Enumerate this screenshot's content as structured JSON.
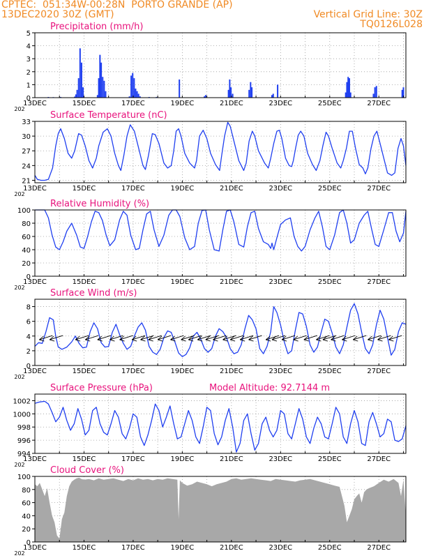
{
  "header": {
    "line1": "CPTEC:  051:34W-00:28N  PORTO GRANDE (AP)",
    "line2": "13DEC2020 30Z (GMT)",
    "grid_note": "Vertical Grid Line: 30Z",
    "code": "TQ0126L028"
  },
  "colors": {
    "header": "#f08a24",
    "title": "#e8127c",
    "series": "#1f3ff0",
    "cloud": "#a8a8a8",
    "grid": "#9a9a9a"
  },
  "x_tick_labels": [
    "13DEC",
    "15DEC",
    "17DEC",
    "19DEC",
    "21DEC",
    "23DEC",
    "25DEC",
    "27DEC"
  ],
  "x_corner_label": "202",
  "chart_data": [
    {
      "id": "precip",
      "type": "bar",
      "title": "Precipitation (mm/h)",
      "ylim": [
        0,
        5
      ],
      "yticks": [
        0,
        1,
        2,
        3,
        4,
        5
      ],
      "xlim_days": [
        13.0,
        28.1
      ],
      "values": [
        [
          13.55,
          0.05
        ],
        [
          13.75,
          0.04
        ],
        [
          14.05,
          0.05
        ],
        [
          14.62,
          0.08
        ],
        [
          14.67,
          0.25
        ],
        [
          14.72,
          0.6
        ],
        [
          14.78,
          1.5
        ],
        [
          14.84,
          3.8
        ],
        [
          14.9,
          2.7
        ],
        [
          14.96,
          0.8
        ],
        [
          15.55,
          0.2
        ],
        [
          15.6,
          1.5
        ],
        [
          15.65,
          3.3
        ],
        [
          15.7,
          2.7
        ],
        [
          15.76,
          1.6
        ],
        [
          15.82,
          1.3
        ],
        [
          15.88,
          0.5
        ],
        [
          16.85,
          0.1
        ],
        [
          16.92,
          1.7
        ],
        [
          16.98,
          1.9
        ],
        [
          17.04,
          1.5
        ],
        [
          17.1,
          0.7
        ],
        [
          17.16,
          0.5
        ],
        [
          17.22,
          0.3
        ],
        [
          17.28,
          0.1
        ],
        [
          17.65,
          0.05
        ],
        [
          17.95,
          0.05
        ],
        [
          18.88,
          1.4
        ],
        [
          19.9,
          0.1
        ],
        [
          19.95,
          0.2
        ],
        [
          20.88,
          0.6
        ],
        [
          20.93,
          1.4
        ],
        [
          20.98,
          0.8
        ],
        [
          21.05,
          0.3
        ],
        [
          21.72,
          0.6
        ],
        [
          21.78,
          1.2
        ],
        [
          21.83,
          0.8
        ],
        [
          22.65,
          0.2
        ],
        [
          22.7,
          0.3
        ],
        [
          22.88,
          1.0
        ],
        [
          25.65,
          0.4
        ],
        [
          25.7,
          1.2
        ],
        [
          25.75,
          1.6
        ],
        [
          25.8,
          1.5
        ],
        [
          25.85,
          0.4
        ],
        [
          26.78,
          0.3
        ],
        [
          26.84,
          0.8
        ],
        [
          26.9,
          0.9
        ],
        [
          27.95,
          0.6
        ],
        [
          28.0,
          0.8
        ]
      ]
    },
    {
      "id": "temp",
      "type": "line",
      "title": "Surface Temperature (nC)",
      "ylim": [
        20.5,
        33
      ],
      "yticks": [
        21,
        24,
        27,
        30,
        33
      ],
      "xlim_days": [
        13.0,
        28.1
      ],
      "x": [
        13.0,
        13.1,
        13.25,
        13.4,
        13.55,
        13.72,
        13.85,
        13.95,
        14.05,
        14.2,
        14.35,
        14.5,
        14.62,
        14.78,
        14.9,
        15.05,
        15.2,
        15.35,
        15.5,
        15.6,
        15.78,
        15.95,
        16.1,
        16.25,
        16.4,
        16.5,
        16.62,
        16.75,
        16.88,
        17.05,
        17.2,
        17.4,
        17.5,
        17.62,
        17.78,
        17.9,
        18.05,
        18.25,
        18.4,
        18.55,
        18.65,
        18.75,
        18.85,
        18.95,
        19.1,
        19.3,
        19.5,
        19.58,
        19.7,
        19.85,
        20.0,
        20.15,
        20.35,
        20.52,
        20.6,
        20.72,
        20.85,
        20.95,
        21.1,
        21.3,
        21.5,
        21.6,
        21.72,
        21.85,
        21.95,
        22.1,
        22.35,
        22.5,
        22.6,
        22.72,
        22.85,
        22.95,
        23.05,
        23.2,
        23.35,
        23.45,
        23.52,
        23.62,
        23.72,
        23.82,
        23.95,
        24.1,
        24.3,
        24.45,
        24.6,
        24.72,
        24.85,
        24.95,
        25.1,
        25.3,
        25.45,
        25.55,
        25.68,
        25.8,
        25.92,
        26.05,
        26.2,
        26.35,
        26.45,
        26.55,
        26.68,
        26.8,
        26.92,
        27.05,
        27.2,
        27.35,
        27.52,
        27.65,
        27.78,
        27.9,
        28.0,
        28.1
      ],
      "y": [
        22.0,
        21.2,
        21.0,
        21.0,
        21.2,
        23.5,
        28.0,
        30.5,
        31.5,
        29.5,
        26.5,
        25.5,
        27.0,
        30.5,
        30.2,
        28.0,
        25.0,
        23.5,
        25.5,
        28.0,
        30.8,
        31.5,
        30.0,
        26.5,
        24.0,
        23.0,
        26.0,
        30.0,
        32.3,
        31.0,
        28.0,
        24.0,
        23.2,
        26.0,
        30.5,
        30.3,
        28.5,
        24.5,
        23.5,
        24.0,
        27.0,
        31.0,
        31.5,
        30.0,
        26.5,
        24.5,
        23.5,
        25.0,
        30.0,
        31.2,
        29.5,
        26.5,
        24.2,
        23.0,
        26.0,
        30.0,
        32.8,
        32.0,
        29.0,
        25.0,
        23.0,
        24.5,
        29.0,
        31.0,
        30.0,
        27.0,
        24.5,
        23.5,
        25.5,
        28.5,
        31.0,
        31.2,
        29.5,
        25.5,
        24.0,
        23.8,
        25.0,
        27.8,
        30.2,
        31.0,
        30.0,
        26.5,
        24.2,
        23.0,
        25.0,
        28.0,
        30.8,
        30.0,
        27.5,
        24.5,
        23.5,
        25.0,
        27.5,
        31.0,
        31.0,
        27.5,
        24.2,
        23.5,
        22.3,
        23.5,
        27.5,
        30.0,
        31.0,
        28.5,
        25.5,
        22.5,
        22.0,
        22.5,
        27.5,
        29.5,
        28.0,
        24.0
      ]
    },
    {
      "id": "rh",
      "type": "line",
      "title": "Relative Humidity (%)",
      "ylim": [
        0,
        100
      ],
      "yticks": [
        0,
        20,
        40,
        60,
        80,
        100
      ],
      "xlim_days": [
        13.0,
        28.1
      ],
      "x": [
        13.0,
        13.2,
        13.4,
        13.55,
        13.7,
        13.85,
        14.0,
        14.15,
        14.3,
        14.5,
        14.7,
        14.85,
        15.0,
        15.15,
        15.3,
        15.45,
        15.6,
        15.75,
        15.9,
        16.05,
        16.25,
        16.45,
        16.6,
        16.75,
        16.9,
        17.1,
        17.25,
        17.4,
        17.55,
        17.7,
        17.85,
        18.05,
        18.25,
        18.45,
        18.6,
        18.75,
        18.9,
        19.1,
        19.3,
        19.5,
        19.65,
        19.8,
        19.95,
        20.1,
        20.3,
        20.5,
        20.65,
        20.8,
        20.95,
        21.1,
        21.3,
        21.5,
        21.65,
        21.8,
        21.95,
        22.1,
        22.3,
        22.5,
        22.6,
        22.65,
        22.72,
        22.85,
        23.0,
        23.2,
        23.4,
        23.55,
        23.7,
        23.85,
        24.0,
        24.2,
        24.4,
        24.55,
        24.7,
        24.85,
        25.0,
        25.2,
        25.4,
        25.55,
        25.7,
        25.85,
        26.0,
        26.2,
        26.4,
        26.55,
        26.7,
        26.85,
        27.0,
        27.2,
        27.4,
        27.55,
        27.7,
        27.85,
        28.0,
        28.1
      ],
      "y": [
        100,
        100,
        100,
        88,
        62,
        44,
        40,
        52,
        68,
        80,
        62,
        44,
        42,
        60,
        82,
        98,
        96,
        84,
        62,
        46,
        55,
        85,
        98,
        92,
        62,
        40,
        42,
        70,
        94,
        98,
        70,
        45,
        62,
        92,
        100,
        100,
        90,
        58,
        40,
        45,
        80,
        99,
        100,
        70,
        40,
        38,
        70,
        98,
        100,
        82,
        48,
        44,
        75,
        96,
        98,
        72,
        52,
        48,
        42,
        50,
        40,
        58,
        78,
        85,
        88,
        60,
        45,
        38,
        45,
        70,
        88,
        98,
        75,
        45,
        40,
        62,
        96,
        100,
        80,
        50,
        55,
        80,
        92,
        98,
        72,
        48,
        45,
        70,
        96,
        96,
        68,
        52,
        65,
        98
      ]
    },
    {
      "id": "wind",
      "type": "line",
      "title": "Surface Wind (m/s)",
      "ylim": [
        0,
        9
      ],
      "yticks": [
        0,
        2,
        4,
        6,
        8
      ],
      "xlim_days": [
        13.0,
        28.1
      ],
      "x": [
        13.0,
        13.15,
        13.3,
        13.45,
        13.6,
        13.75,
        13.85,
        13.95,
        14.1,
        14.3,
        14.5,
        14.65,
        14.8,
        14.95,
        15.1,
        15.25,
        15.4,
        15.55,
        15.7,
        15.85,
        16.0,
        16.15,
        16.3,
        16.45,
        16.6,
        16.75,
        16.9,
        17.05,
        17.2,
        17.35,
        17.5,
        17.65,
        17.8,
        17.95,
        18.1,
        18.25,
        18.4,
        18.55,
        18.7,
        18.85,
        19.0,
        19.15,
        19.3,
        19.45,
        19.6,
        19.75,
        19.9,
        20.05,
        20.2,
        20.35,
        20.5,
        20.65,
        20.8,
        20.95,
        21.1,
        21.25,
        21.4,
        21.55,
        21.7,
        21.85,
        22.0,
        22.15,
        22.3,
        22.45,
        22.6,
        22.72,
        22.85,
        23.0,
        23.15,
        23.3,
        23.45,
        23.6,
        23.75,
        23.9,
        24.05,
        24.2,
        24.35,
        24.5,
        24.65,
        24.8,
        24.95,
        25.1,
        25.25,
        25.4,
        25.55,
        25.7,
        25.85,
        26.0,
        26.15,
        26.3,
        26.45,
        26.6,
        26.75,
        26.9,
        27.05,
        27.2,
        27.35,
        27.5,
        27.65,
        27.8,
        27.95,
        28.1
      ],
      "y": [
        2.6,
        3.1,
        3.0,
        4.6,
        6.5,
        6.2,
        4.0,
        2.5,
        2.2,
        2.5,
        3.2,
        4.0,
        3.0,
        2.4,
        2.5,
        4.6,
        5.8,
        5.0,
        3.1,
        2.5,
        2.6,
        4.5,
        5.6,
        4.2,
        3.0,
        2.2,
        2.6,
        4.0,
        5.2,
        5.8,
        4.8,
        2.6,
        1.8,
        1.5,
        2.2,
        3.8,
        4.7,
        4.5,
        3.2,
        1.7,
        1.2,
        1.5,
        2.4,
        4.0,
        4.5,
        3.6,
        2.3,
        1.8,
        2.3,
        4.0,
        5.0,
        4.6,
        3.8,
        2.3,
        1.6,
        1.8,
        2.8,
        5.0,
        6.8,
        6.2,
        5.0,
        2.3,
        1.6,
        2.6,
        4.6,
        8.0,
        7.2,
        5.5,
        3.2,
        1.6,
        2.0,
        4.8,
        7.2,
        7.0,
        5.3,
        2.8,
        1.8,
        2.5,
        4.5,
        6.3,
        6.0,
        4.4,
        2.5,
        1.6,
        2.8,
        5.2,
        7.5,
        8.4,
        7.0,
        4.5,
        2.3,
        1.6,
        2.8,
        5.5,
        7.5,
        6.3,
        3.8,
        1.4,
        2.2,
        4.6,
        5.8,
        5.6
      ],
      "arrows_x": [
        13.18,
        13.6,
        14.65,
        15.05,
        15.55,
        16.05,
        16.45,
        16.95,
        17.3,
        17.62,
        18.0,
        18.52,
        18.95,
        19.25,
        19.62,
        19.95,
        20.25,
        20.65,
        20.95,
        21.35,
        21.7,
        22.4,
        22.65,
        23.05,
        23.52,
        23.95,
        24.45,
        24.72,
        25.05,
        25.5,
        25.95,
        26.55,
        26.95,
        27.4
      ]
    },
    {
      "id": "pressure",
      "type": "line",
      "title": "Surface Pressure (hPa)",
      "annotation": "Model Altitude: 92.7144 m",
      "ylim": [
        994,
        1003
      ],
      "yticks": [
        994,
        996,
        998,
        1000,
        1002
      ],
      "xlim_days": [
        13.0,
        28.1
      ],
      "x": [
        13.0,
        13.2,
        13.4,
        13.55,
        13.7,
        13.85,
        14.0,
        14.15,
        14.3,
        14.45,
        14.6,
        14.75,
        14.9,
        15.05,
        15.2,
        15.35,
        15.5,
        15.65,
        15.8,
        15.95,
        16.1,
        16.25,
        16.4,
        16.55,
        16.7,
        16.85,
        17.0,
        17.15,
        17.3,
        17.45,
        17.6,
        17.75,
        17.9,
        18.05,
        18.2,
        18.35,
        18.5,
        18.65,
        18.8,
        18.95,
        19.1,
        19.25,
        19.4,
        19.55,
        19.7,
        19.85,
        20.0,
        20.15,
        20.3,
        20.45,
        20.6,
        20.75,
        20.9,
        21.05,
        21.2,
        21.35,
        21.5,
        21.65,
        21.8,
        21.95,
        22.1,
        22.25,
        22.4,
        22.55,
        22.7,
        22.85,
        23.0,
        23.15,
        23.3,
        23.45,
        23.6,
        23.75,
        23.9,
        24.05,
        24.2,
        24.35,
        24.5,
        24.65,
        24.8,
        24.95,
        25.1,
        25.25,
        25.4,
        25.55,
        25.7,
        25.85,
        26.0,
        26.15,
        26.3,
        26.45,
        26.6,
        26.75,
        26.9,
        27.05,
        27.2,
        27.35,
        27.5,
        27.65,
        27.8,
        27.95,
        28.1
      ],
      "y": [
        1001.6,
        1001.8,
        1001.9,
        1001.5,
        1000.2,
        998.8,
        999.5,
        1001.0,
        999.0,
        997.5,
        998.5,
        1000.8,
        999.2,
        996.8,
        997.5,
        1000.5,
        1001.0,
        998.5,
        997.2,
        996.8,
        998.5,
        1000.5,
        999.5,
        997.0,
        996.2,
        997.8,
        1000.0,
        999.5,
        996.5,
        995.2,
        996.8,
        999.0,
        1001.5,
        1000.5,
        998.0,
        999.5,
        1001.2,
        998.5,
        996.2,
        996.5,
        998.5,
        1000.5,
        999.0,
        996.5,
        995.5,
        998.0,
        1001.0,
        1000.5,
        997.0,
        995.3,
        996.5,
        999.0,
        1000.8,
        998.0,
        994.2,
        995.5,
        999.0,
        1000.0,
        997.0,
        994.5,
        995.5,
        998.5,
        999.5,
        997.5,
        996.5,
        997.5,
        1000.5,
        1000.0,
        997.0,
        996.2,
        998.5,
        1000.8,
        999.2,
        996.5,
        995.5,
        997.8,
        999.5,
        998.5,
        996.5,
        996.2,
        998.5,
        1001.0,
        1000.0,
        996.5,
        995.5,
        998.5,
        1000.5,
        998.8,
        995.5,
        995.2,
        998.8,
        1000.2,
        998.5,
        996.5,
        997.0,
        999.2,
        998.8,
        996.0,
        995.8,
        996.2,
        998.2
      ]
    },
    {
      "id": "cloud",
      "type": "area",
      "title": "Cloud Cover (%)",
      "ylim": [
        0,
        100
      ],
      "yticks": [
        0,
        20,
        40,
        60,
        80,
        100
      ],
      "xlim_days": [
        13.0,
        28.1
      ],
      "x": [
        13.0,
        13.1,
        13.2,
        13.3,
        13.4,
        13.5,
        13.6,
        13.7,
        13.8,
        13.9,
        14.0,
        14.1,
        14.2,
        14.3,
        14.4,
        14.5,
        14.6,
        14.7,
        14.8,
        14.9,
        15.0,
        15.2,
        15.4,
        15.6,
        15.8,
        16.0,
        16.2,
        16.4,
        16.6,
        16.8,
        17.0,
        17.2,
        17.4,
        17.6,
        17.8,
        18.0,
        18.2,
        18.4,
        18.6,
        18.8,
        18.85,
        18.9,
        19.0,
        19.2,
        19.4,
        19.6,
        19.8,
        20.0,
        20.2,
        20.4,
        20.6,
        20.8,
        21.0,
        21.2,
        21.4,
        21.6,
        21.8,
        22.0,
        22.2,
        22.4,
        22.6,
        22.8,
        23.0,
        23.2,
        23.4,
        23.6,
        23.8,
        24.0,
        24.2,
        24.4,
        24.6,
        24.8,
        25.0,
        25.2,
        25.4,
        25.6,
        25.7,
        25.8,
        25.9,
        26.0,
        26.1,
        26.2,
        26.3,
        26.4,
        26.5,
        26.6,
        26.8,
        27.0,
        27.2,
        27.4,
        27.6,
        27.8,
        27.9,
        28.0,
        28.1
      ],
      "y": [
        88,
        85,
        90,
        80,
        70,
        82,
        60,
        40,
        30,
        10,
        5,
        35,
        45,
        70,
        85,
        92,
        95,
        97,
        98,
        96,
        95,
        96,
        94,
        97,
        95,
        96,
        97,
        95,
        93,
        96,
        94,
        97,
        95,
        96,
        94,
        96,
        95,
        97,
        96,
        95,
        35,
        94,
        90,
        86,
        88,
        92,
        90,
        88,
        85,
        88,
        90,
        92,
        96,
        97,
        95,
        96,
        97,
        96,
        95,
        94,
        93,
        96,
        95,
        94,
        93,
        92,
        94,
        95,
        96,
        94,
        92,
        90,
        88,
        86,
        84,
        55,
        30,
        40,
        50,
        65,
        70,
        74,
        60,
        76,
        80,
        82,
        85,
        90,
        95,
        92,
        96,
        90,
        70,
        95,
        40
      ]
    }
  ]
}
